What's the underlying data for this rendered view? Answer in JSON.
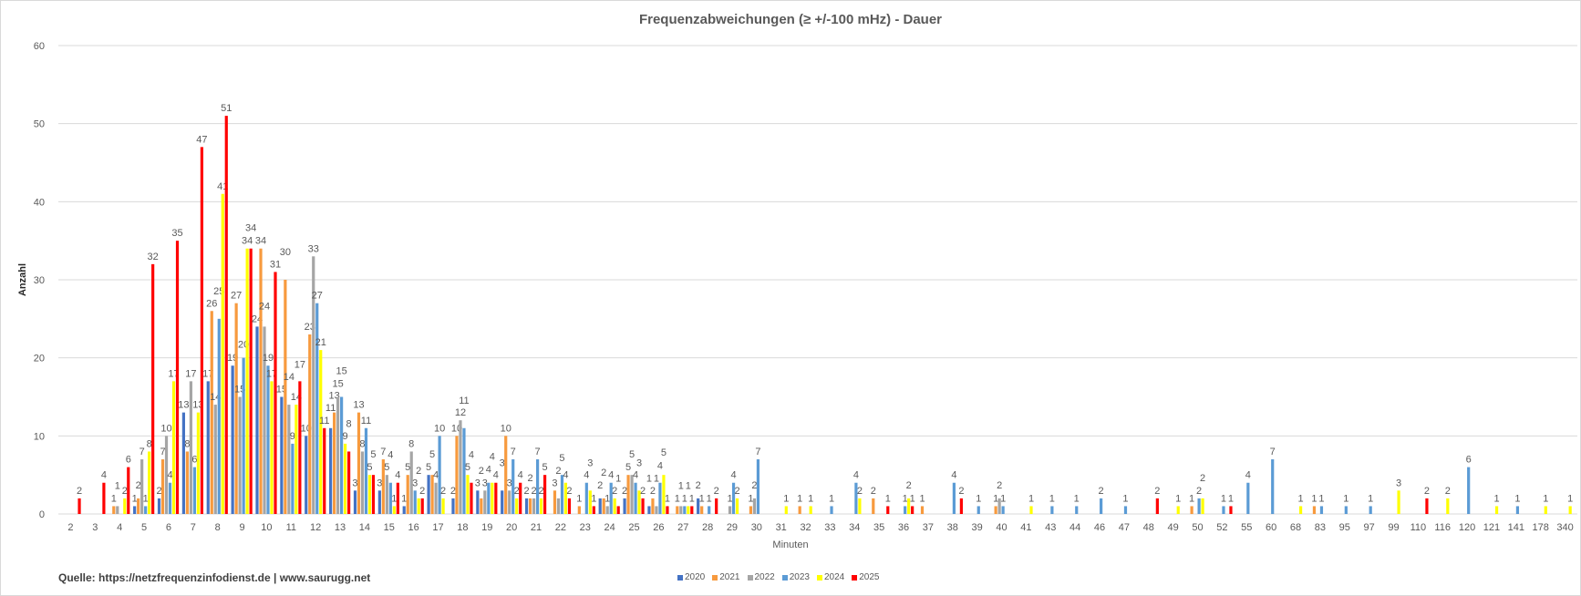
{
  "chart_data": {
    "type": "bar",
    "title": "Frequenzabweichungen (≥ +/-100 mHz) - Dauer",
    "xlabel": "Minuten",
    "ylabel": "Anzahl",
    "ylim": [
      0,
      60
    ],
    "yticks": [
      0,
      10,
      20,
      30,
      40,
      50,
      60
    ],
    "grid": true,
    "legend_position": "bottom",
    "categories": [
      "2",
      "3",
      "4",
      "5",
      "6",
      "7",
      "8",
      "9",
      "10",
      "11",
      "12",
      "13",
      "14",
      "15",
      "16",
      "17",
      "18",
      "19",
      "20",
      "21",
      "22",
      "23",
      "24",
      "25",
      "26",
      "27",
      "28",
      "29",
      "30",
      "31",
      "32",
      "33",
      "34",
      "35",
      "36",
      "37",
      "38",
      "39",
      "40",
      "41",
      "43",
      "44",
      "46",
      "47",
      "48",
      "49",
      "50",
      "52",
      "55",
      "60",
      "68",
      "83",
      "95",
      "97",
      "99",
      "110",
      "116",
      "120",
      "121",
      "141",
      "178",
      "340"
    ],
    "series": [
      {
        "name": "2020",
        "color": "#4472C4",
        "values": [
          null,
          null,
          null,
          1,
          2,
          13,
          17,
          19,
          24,
          15,
          10,
          11,
          3,
          3,
          1,
          5,
          2,
          3,
          3,
          2,
          null,
          null,
          2,
          2,
          1,
          null,
          2,
          null,
          null,
          null,
          null,
          null,
          null,
          null,
          null,
          null,
          null,
          null,
          null,
          null,
          null,
          null,
          null,
          null,
          null,
          null,
          null,
          null,
          null,
          null,
          null,
          null,
          null,
          null,
          null,
          null,
          null,
          null,
          null,
          null,
          null,
          null
        ]
      },
      {
        "name": "2021",
        "color": "#F79A3E",
        "values": [
          null,
          null,
          1,
          2,
          7,
          8,
          26,
          27,
          34,
          30,
          23,
          13,
          13,
          7,
          5,
          5,
          10,
          2,
          10,
          2,
          3,
          1,
          2,
          5,
          2,
          1,
          1,
          null,
          1,
          null,
          1,
          null,
          null,
          2,
          null,
          1,
          null,
          null,
          1,
          null,
          null,
          null,
          null,
          null,
          null,
          null,
          1,
          null,
          null,
          null,
          null,
          1,
          null,
          null,
          null,
          null,
          null,
          null,
          null,
          null,
          null,
          null
        ]
      },
      {
        "name": "2022",
        "color": "#A5A5A5",
        "values": [
          null,
          null,
          1,
          7,
          10,
          17,
          14,
          15,
          24,
          14,
          33,
          15,
          8,
          5,
          8,
          4,
          12,
          3,
          3,
          2,
          2,
          null,
          1,
          5,
          1,
          1,
          null,
          1,
          2,
          null,
          null,
          null,
          null,
          null,
          null,
          null,
          null,
          null,
          2,
          null,
          null,
          null,
          null,
          null,
          null,
          null,
          null,
          null,
          null,
          null,
          null,
          null,
          null,
          null,
          null,
          null,
          null,
          null,
          null,
          null,
          null,
          null
        ]
      },
      {
        "name": "2023",
        "color": "#5B9BD5",
        "values": [
          null,
          null,
          null,
          1,
          4,
          6,
          25,
          20,
          19,
          9,
          27,
          15,
          11,
          4,
          3,
          10,
          11,
          4,
          7,
          7,
          5,
          4,
          4,
          4,
          4,
          1,
          1,
          4,
          7,
          null,
          null,
          1,
          4,
          null,
          1,
          null,
          4,
          1,
          1,
          null,
          1,
          1,
          2,
          1,
          null,
          null,
          2,
          1,
          4,
          7,
          null,
          1,
          1,
          1,
          null,
          null,
          null,
          6,
          null,
          1,
          null,
          null
        ]
      },
      {
        "name": "2024",
        "color": "#FFFF00",
        "values": [
          null,
          null,
          2,
          8,
          17,
          13,
          41,
          34,
          17,
          14,
          21,
          9,
          5,
          1,
          2,
          2,
          5,
          4,
          2,
          2,
          4,
          3,
          2,
          3,
          5,
          1,
          null,
          2,
          null,
          1,
          1,
          null,
          2,
          null,
          2,
          null,
          null,
          null,
          null,
          1,
          null,
          null,
          null,
          null,
          null,
          1,
          2,
          null,
          null,
          null,
          1,
          null,
          null,
          null,
          3,
          null,
          2,
          null,
          1,
          null,
          1,
          1
        ]
      },
      {
        "name": "2025",
        "color": "#FF0000",
        "values": [
          2,
          4,
          6,
          32,
          35,
          47,
          51,
          34,
          31,
          17,
          11,
          8,
          5,
          4,
          2,
          null,
          4,
          4,
          4,
          5,
          2,
          1,
          1,
          2,
          1,
          1,
          2,
          null,
          null,
          null,
          null,
          null,
          null,
          1,
          1,
          null,
          2,
          null,
          null,
          null,
          null,
          null,
          null,
          null,
          2,
          null,
          null,
          1,
          null,
          null,
          null,
          null,
          null,
          null,
          null,
          2,
          null,
          null,
          null,
          null,
          null,
          null
        ]
      }
    ]
  },
  "footer": {
    "source": "Quelle: https://netzfrequenzinfodienst.de | www.saurugg.net"
  }
}
